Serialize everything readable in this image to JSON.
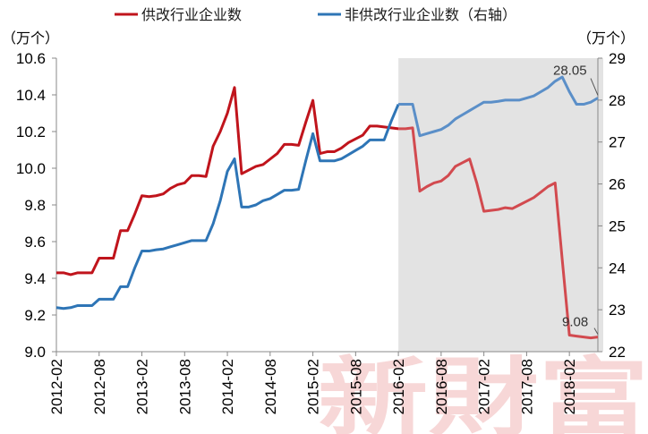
{
  "chart_data": {
    "type": "line",
    "title": "",
    "legend": {
      "placement": "top",
      "entries": [
        "供改行业企业数",
        "非供改行业企业数（右轴）"
      ]
    },
    "left_axis": {
      "unit": "（万个）",
      "ylim": [
        9.0,
        10.6
      ],
      "ticks": [
        "9.0",
        "9.2",
        "9.4",
        "9.6",
        "9.8",
        "10.0",
        "10.2",
        "10.4",
        "10.6"
      ]
    },
    "right_axis": {
      "unit": "（万个）",
      "ylim": [
        22,
        29
      ],
      "ticks": [
        "22",
        "23",
        "24",
        "25",
        "26",
        "27",
        "28",
        "29"
      ]
    },
    "x_tick_labels": [
      "2012-02",
      "2012-08",
      "2013-02",
      "2013-08",
      "2014-02",
      "2014-08",
      "2015-02",
      "2015-08",
      "2016-02",
      "2016-08",
      "2017-02",
      "2017-08",
      "2018-02"
    ],
    "x": [
      "2012-02",
      "2012-03",
      "2012-04",
      "2012-05",
      "2012-06",
      "2012-07",
      "2012-08",
      "2012-09",
      "2012-10",
      "2012-11",
      "2012-12",
      "2013-01",
      "2013-02",
      "2013-03",
      "2013-04",
      "2013-05",
      "2013-06",
      "2013-07",
      "2013-08",
      "2013-09",
      "2013-10",
      "2013-11",
      "2013-12",
      "2014-01",
      "2014-02",
      "2014-03",
      "2014-04",
      "2014-05",
      "2014-06",
      "2014-07",
      "2014-08",
      "2014-09",
      "2014-10",
      "2014-11",
      "2014-12",
      "2015-01",
      "2015-02",
      "2015-03",
      "2015-04",
      "2015-05",
      "2015-06",
      "2015-07",
      "2015-08",
      "2015-09",
      "2015-10",
      "2015-11",
      "2015-12",
      "2016-01",
      "2016-02",
      "2016-03",
      "2016-04",
      "2016-05",
      "2016-06",
      "2016-07",
      "2016-08",
      "2016-09",
      "2016-10",
      "2016-11",
      "2016-12",
      "2017-01",
      "2017-02",
      "2017-03",
      "2017-04",
      "2017-05",
      "2017-06",
      "2017-07",
      "2017-08",
      "2017-09",
      "2017-10",
      "2017-11",
      "2017-12",
      "2018-01",
      "2018-02",
      "2018-03",
      "2018-04",
      "2018-05",
      "2018-06"
    ],
    "series": [
      {
        "name": "供改行业企业数",
        "axis": "left",
        "color": "#c0141c",
        "values": [
          9.43,
          9.43,
          9.42,
          9.43,
          9.43,
          9.43,
          9.51,
          9.51,
          9.51,
          9.66,
          9.66,
          9.75,
          9.85,
          9.845,
          9.85,
          9.86,
          9.89,
          9.91,
          9.92,
          9.96,
          9.96,
          9.955,
          10.12,
          10.2,
          10.3,
          10.44,
          9.97,
          9.99,
          10.01,
          10.02,
          10.05,
          10.08,
          10.13,
          10.13,
          10.125,
          10.25,
          10.37,
          10.08,
          10.09,
          10.09,
          10.11,
          10.14,
          10.16,
          10.18,
          10.23,
          10.23,
          10.225,
          10.22,
          10.215,
          10.215,
          10.22,
          9.875,
          9.9,
          9.92,
          9.93,
          9.96,
          10.01,
          10.03,
          10.05,
          9.92,
          9.765,
          9.77,
          9.775,
          9.785,
          9.78,
          9.8,
          9.82,
          9.84,
          9.87,
          9.9,
          9.92,
          9.5,
          9.09,
          9.085,
          9.08,
          9.075,
          9.08
        ]
      },
      {
        "name": "非供改行业企业数（右轴）",
        "axis": "right",
        "color": "#2e75b6",
        "values": [
          23.05,
          23.03,
          23.05,
          23.1,
          23.1,
          23.1,
          23.25,
          23.25,
          23.25,
          23.55,
          23.55,
          24.0,
          24.4,
          24.4,
          24.43,
          24.45,
          24.5,
          24.55,
          24.6,
          24.65,
          24.65,
          24.65,
          25.05,
          25.6,
          26.3,
          26.6,
          25.45,
          25.45,
          25.5,
          25.6,
          25.65,
          25.75,
          25.85,
          25.85,
          25.87,
          26.55,
          27.2,
          26.55,
          26.55,
          26.55,
          26.6,
          26.7,
          26.8,
          26.9,
          27.05,
          27.05,
          27.05,
          27.5,
          27.9,
          27.9,
          27.9,
          27.15,
          27.2,
          27.25,
          27.3,
          27.4,
          27.55,
          27.65,
          27.75,
          27.85,
          27.95,
          27.95,
          27.97,
          28.0,
          28.0,
          28.0,
          28.05,
          28.1,
          28.2,
          28.3,
          28.45,
          28.55,
          28.2,
          27.9,
          27.9,
          27.95,
          28.05
        ]
      }
    ],
    "shaded_region": {
      "from": "2016-02",
      "to": "2018-06"
    },
    "annotations": [
      {
        "text": "28.05",
        "series": "非供改行业企业数（右轴）",
        "x": "2018-06"
      },
      {
        "text": "9.08",
        "series": "供改行业企业数",
        "x": "2018-06"
      }
    ],
    "watermark": "新財富",
    "grid": false
  }
}
